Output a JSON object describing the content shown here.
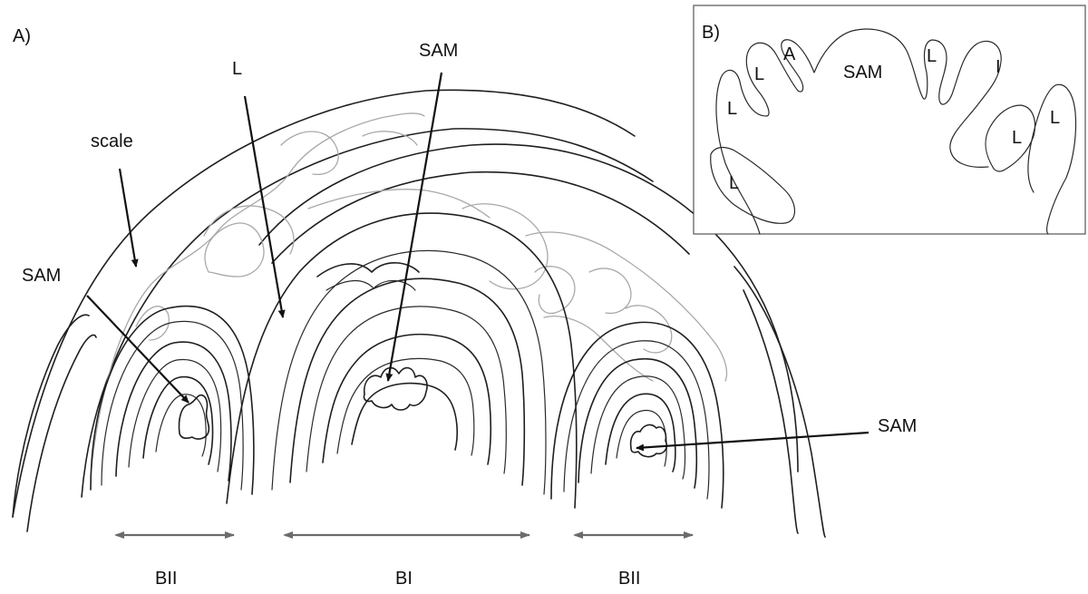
{
  "panel_a": {
    "label": "A)",
    "labels": {
      "scale": "scale",
      "leaf": "L",
      "sam_center": "SAM",
      "sam_left": "SAM",
      "sam_right": "SAM",
      "bii_left": "BII",
      "bi": "BI",
      "bii_right": "BII"
    }
  },
  "panel_b": {
    "label": "B)",
    "labels": {
      "sam": "SAM",
      "a": "A",
      "i": "I",
      "l_top_left": "L",
      "l_mid_left": "L",
      "l_bottom_left": "L",
      "l_top_center": "L",
      "l_right_inner": "L",
      "l_right_outer": "L"
    }
  },
  "colors": {
    "ink": "#1f1f1f",
    "grey_outline": "#a9a9a9",
    "span_arrow": "#6b6b6b"
  }
}
